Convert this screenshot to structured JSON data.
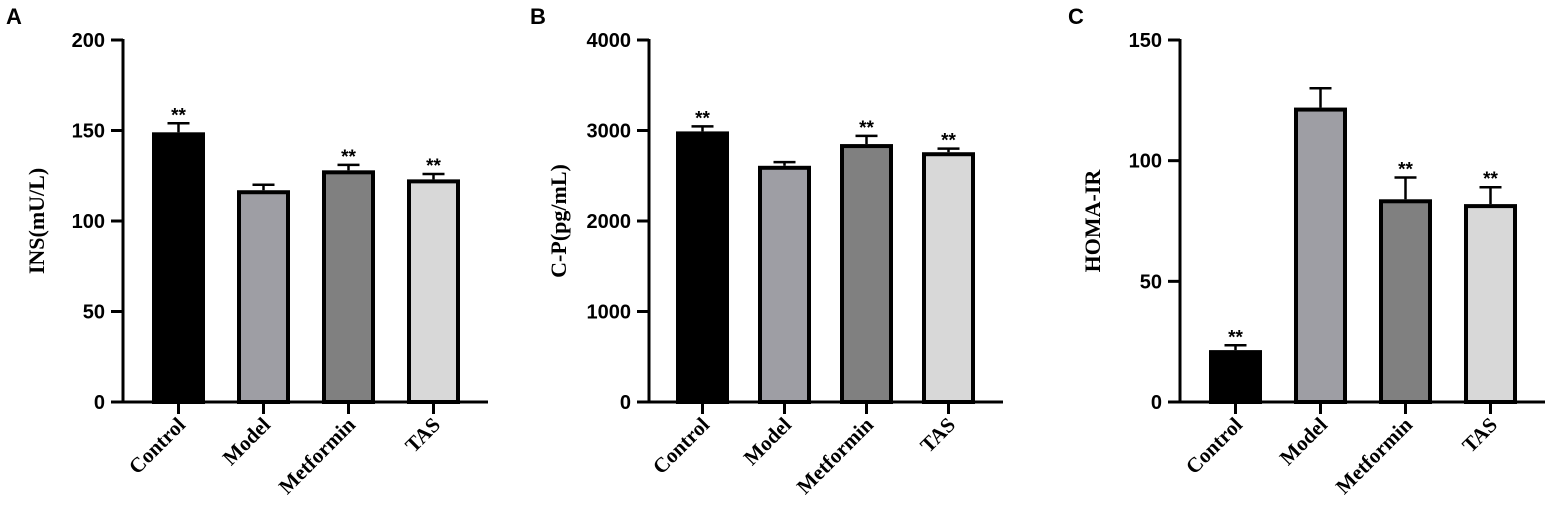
{
  "chart_data": [
    {
      "type": "bar",
      "panel": "A",
      "categories": [
        "Control",
        "Model",
        "Metformin",
        "TAS"
      ],
      "values": [
        149,
        117,
        128,
        123
      ],
      "errors": [
        5,
        3,
        3,
        3
      ],
      "annotations": [
        "**",
        "",
        "**",
        "**"
      ],
      "ylabel": "INS(mU/L)",
      "xlabel": "",
      "title": "",
      "ylim": [
        0,
        200
      ],
      "yticks": [
        0,
        50,
        100,
        150,
        200
      ],
      "bar_colors": [
        "#000000",
        "#9e9ea4",
        "#808080",
        "#d8d8d8"
      ]
    },
    {
      "type": "bar",
      "panel": "B",
      "categories": [
        "Control",
        "Model",
        "Metformin",
        "TAS"
      ],
      "values": [
        2990,
        2610,
        2850,
        2760
      ],
      "errors": [
        55,
        40,
        90,
        40
      ],
      "annotations": [
        "**",
        "",
        "**",
        "**"
      ],
      "ylabel": "C-P(pg/mL)",
      "xlabel": "",
      "title": "",
      "ylim": [
        0,
        4000
      ],
      "yticks": [
        0,
        1000,
        2000,
        3000,
        4000
      ],
      "bar_colors": [
        "#000000",
        "#9e9ea4",
        "#808080",
        "#d8d8d8"
      ]
    },
    {
      "type": "bar",
      "panel": "C",
      "categories": [
        "Control",
        "Model",
        "Metformin",
        "TAS"
      ],
      "values": [
        21.5,
        122,
        84,
        82
      ],
      "errors": [
        2,
        8,
        9,
        7
      ],
      "annotations": [
        "**",
        "",
        "**",
        "**"
      ],
      "ylabel": "HOMA-IR",
      "xlabel": "",
      "title": "",
      "ylim": [
        0,
        150
      ],
      "yticks": [
        0,
        50,
        100,
        150
      ],
      "bar_colors": [
        "#000000",
        "#9e9ea4",
        "#808080",
        "#d8d8d8"
      ]
    }
  ]
}
